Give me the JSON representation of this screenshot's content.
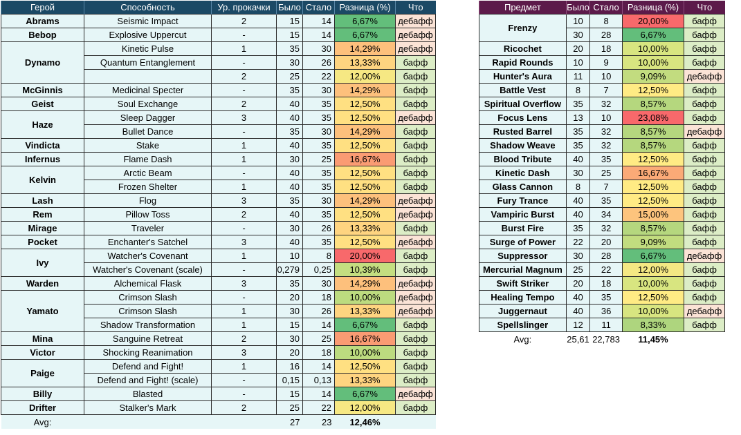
{
  "hero_table": {
    "headers": [
      "Герой",
      "Способность",
      "Ур. прокачки",
      "Было",
      "Стало",
      "Разница (%)",
      "Что"
    ],
    "rows": [
      {
        "hero": "Abrams",
        "span": 1,
        "ability": "Seismic Impact",
        "level": "2",
        "was": "15",
        "now": "14",
        "diff": "6,67%",
        "what": "дебафф",
        "type": "debuff",
        "color": "#63be7b"
      },
      {
        "hero": "Bebop",
        "span": 1,
        "ability": "Explosive Uppercut",
        "level": "-",
        "was": "15",
        "now": "14",
        "diff": "6,67%",
        "what": "дебафф",
        "type": "debuff",
        "color": "#63be7b"
      },
      {
        "hero": "Dynamo",
        "span": 3,
        "ability": "Kinetic Pulse",
        "level": "1",
        "was": "35",
        "now": "30",
        "diff": "14,29%",
        "what": "дебафф",
        "type": "debuff",
        "color": "#fdc07c"
      },
      {
        "hero": "",
        "span": 0,
        "ability": "Quantum Entanglement",
        "level": "-",
        "was": "30",
        "now": "26",
        "diff": "13,33%",
        "what": "бафф",
        "type": "buff",
        "color": "#fed480"
      },
      {
        "hero": "",
        "span": 0,
        "ability": "",
        "level": "2",
        "was": "25",
        "now": "22",
        "diff": "12,00%",
        "what": "бафф",
        "type": "buff",
        "color": "#f6e883"
      },
      {
        "hero": "McGinnis",
        "span": 1,
        "ability": "Medicinal Specter",
        "level": "-",
        "was": "35",
        "now": "30",
        "diff": "14,29%",
        "what": "бафф",
        "type": "buff",
        "color": "#fdc07c"
      },
      {
        "hero": "Geist",
        "span": 1,
        "ability": "Soul Exchange",
        "level": "2",
        "was": "40",
        "now": "35",
        "diff": "12,50%",
        "what": "бафф",
        "type": "buff",
        "color": "#ffe082"
      },
      {
        "hero": "Haze",
        "span": 2,
        "ability": "Sleep Dagger",
        "level": "3",
        "was": "40",
        "now": "35",
        "diff": "12,50%",
        "what": "дебафф",
        "type": "debuff",
        "color": "#ffe082"
      },
      {
        "hero": "",
        "span": 0,
        "ability": "Bullet Dance",
        "level": "-",
        "was": "35",
        "now": "30",
        "diff": "14,29%",
        "what": "бафф",
        "type": "buff",
        "color": "#fdc07c"
      },
      {
        "hero": "Vindicta",
        "span": 1,
        "ability": "Stake",
        "level": "1",
        "was": "40",
        "now": "35",
        "diff": "12,50%",
        "what": "бафф",
        "type": "buff",
        "color": "#ffe082"
      },
      {
        "hero": "Infernus",
        "span": 1,
        "ability": "Flame Dash",
        "level": "1",
        "was": "30",
        "now": "25",
        "diff": "16,67%",
        "what": "бафф",
        "type": "buff",
        "color": "#fa9b73"
      },
      {
        "hero": "Kelvin",
        "span": 2,
        "ability": "Arctic Beam",
        "level": "-",
        "was": "40",
        "now": "35",
        "diff": "12,50%",
        "what": "бафф",
        "type": "buff",
        "color": "#ffe082"
      },
      {
        "hero": "",
        "span": 0,
        "ability": "Frozen Shelter",
        "level": "1",
        "was": "40",
        "now": "35",
        "diff": "12,50%",
        "what": "бафф",
        "type": "buff",
        "color": "#ffe082"
      },
      {
        "hero": "Lash",
        "span": 1,
        "ability": "Flog",
        "level": "3",
        "was": "35",
        "now": "30",
        "diff": "14,29%",
        "what": "дебафф",
        "type": "debuff",
        "color": "#fdc07c"
      },
      {
        "hero": "Rem",
        "span": 1,
        "ability": "Pillow Toss",
        "level": "2",
        "was": "40",
        "now": "35",
        "diff": "12,50%",
        "what": "дебафф",
        "type": "debuff",
        "color": "#ffe082"
      },
      {
        "hero": "Mirage",
        "span": 1,
        "ability": "Traveler",
        "level": "-",
        "was": "30",
        "now": "26",
        "diff": "13,33%",
        "what": "бафф",
        "type": "buff",
        "color": "#fed480"
      },
      {
        "hero": "Pocket",
        "span": 1,
        "ability": "Enchanter's Satchel",
        "level": "3",
        "was": "40",
        "now": "35",
        "diff": "12,50%",
        "what": "дебафф",
        "type": "debuff",
        "color": "#ffe082"
      },
      {
        "hero": "Ivy",
        "span": 2,
        "ability": "Watcher's Covenant",
        "level": "1",
        "was": "10",
        "now": "8",
        "diff": "20,00%",
        "what": "бафф",
        "type": "buff",
        "color": "#f8696b"
      },
      {
        "hero": "",
        "span": 0,
        "ability": "Watcher's Covenant  (scale)",
        "level": "-",
        "was": "0,279",
        "now": "0,25",
        "diff": "10,39%",
        "what": "бафф",
        "type": "buff",
        "color": "#c4de80"
      },
      {
        "hero": "Warden",
        "span": 1,
        "ability": "Alchemical Flask",
        "level": "3",
        "was": "35",
        "now": "30",
        "diff": "14,29%",
        "what": "дебафф",
        "type": "debuff",
        "color": "#fdc07c"
      },
      {
        "hero": "Yamato",
        "span": 3,
        "ability": "Crimson Slash",
        "level": "-",
        "was": "20",
        "now": "18",
        "diff": "10,00%",
        "what": "дебафф",
        "type": "debuff",
        "color": "#bcdb7f"
      },
      {
        "hero": "",
        "span": 0,
        "ability": "Crimson Slash",
        "level": "1",
        "was": "30",
        "now": "26",
        "diff": "13,33%",
        "what": "дебафф",
        "type": "debuff",
        "color": "#fed480"
      },
      {
        "hero": "",
        "span": 0,
        "ability": "Shadow Transformation",
        "level": "1",
        "was": "15",
        "now": "14",
        "diff": "6,67%",
        "what": "бафф",
        "type": "buff",
        "color": "#63be7b"
      },
      {
        "hero": "Mina",
        "span": 1,
        "ability": "Sanguine Retreat",
        "level": "2",
        "was": "30",
        "now": "25",
        "diff": "16,67%",
        "what": "бафф",
        "type": "buff",
        "color": "#fa9b73"
      },
      {
        "hero": "Victor",
        "span": 1,
        "ability": "Shocking Reanimation",
        "level": "3",
        "was": "20",
        "now": "18",
        "diff": "10,00%",
        "what": "бафф",
        "type": "buff",
        "color": "#bcdb7f"
      },
      {
        "hero": "Paige",
        "span": 2,
        "ability": "Defend and Fight!",
        "level": "1",
        "was": "16",
        "now": "14",
        "diff": "12,50%",
        "what": "бафф",
        "type": "buff",
        "color": "#ffe082"
      },
      {
        "hero": "",
        "span": 0,
        "ability": "Defend and Fight! (scale)",
        "level": "-",
        "was": "0,15",
        "now": "0,13",
        "diff": "13,33%",
        "what": "бафф",
        "type": "buff",
        "color": "#fed480"
      },
      {
        "hero": "Billy",
        "span": 1,
        "ability": "Blasted",
        "level": "-",
        "was": "15",
        "now": "14",
        "diff": "6,67%",
        "what": "дебафф",
        "type": "debuff",
        "color": "#63be7b"
      },
      {
        "hero": "Drifter",
        "span": 1,
        "ability": "Stalker's Mark",
        "level": "2",
        "was": "25",
        "now": "22",
        "diff": "12,00%",
        "what": "бафф",
        "type": "buff",
        "color": "#f6e883"
      }
    ],
    "avg": {
      "label": "Avg:",
      "was": "27",
      "now": "23",
      "diff": "12,46%"
    }
  },
  "item_table": {
    "headers": [
      "Предмет",
      "Было",
      "Стало",
      "Разница (%)",
      "Что"
    ],
    "rows": [
      {
        "item": "Frenzy",
        "span": 2,
        "was": "10",
        "now": "8",
        "diff": "20,00%",
        "what": "бафф",
        "type": "buff",
        "color": "#f8696b"
      },
      {
        "item": "",
        "span": 0,
        "was": "30",
        "now": "28",
        "diff": "6,67%",
        "what": "бафф",
        "type": "buff",
        "color": "#63be7b"
      },
      {
        "item": "Ricochet",
        "span": 1,
        "was": "20",
        "now": "18",
        "diff": "10,00%",
        "what": "бафф",
        "type": "buff",
        "color": "#d8e580"
      },
      {
        "item": "Rapid Rounds",
        "span": 1,
        "was": "10",
        "now": "9",
        "diff": "10,00%",
        "what": "бафф",
        "type": "buff",
        "color": "#d8e580"
      },
      {
        "item": "Hunter's Aura",
        "span": 1,
        "was": "11",
        "now": "10",
        "diff": "9,09%",
        "what": "дебафф",
        "type": "debuff",
        "color": "#c2dc7f"
      },
      {
        "item": "Battle Vest",
        "span": 1,
        "was": "8",
        "now": "7",
        "diff": "12,50%",
        "what": "бафф",
        "type": "buff",
        "color": "#ffeb84"
      },
      {
        "item": "Spiritual Overflow",
        "span": 1,
        "was": "35",
        "now": "32",
        "diff": "8,57%",
        "what": "бафф",
        "type": "buff",
        "color": "#b5d77e"
      },
      {
        "item": "Focus Lens",
        "span": 1,
        "was": "13",
        "now": "10",
        "diff": "23,08%",
        "what": "бафф",
        "type": "buff",
        "color": "#f8696b"
      },
      {
        "item": "Rusted Barrel",
        "span": 1,
        "was": "35",
        "now": "32",
        "diff": "8,57%",
        "what": "дебафф",
        "type": "debuff",
        "color": "#b5d77e"
      },
      {
        "item": "Shadow Weave",
        "span": 1,
        "was": "35",
        "now": "32",
        "diff": "8,57%",
        "what": "бафф",
        "type": "buff",
        "color": "#b5d77e"
      },
      {
        "item": "Blood Tribute",
        "span": 1,
        "was": "40",
        "now": "35",
        "diff": "12,50%",
        "what": "бафф",
        "type": "buff",
        "color": "#ffeb84"
      },
      {
        "item": "Kinetic Dash",
        "span": 1,
        "was": "30",
        "now": "25",
        "diff": "16,67%",
        "what": "бафф",
        "type": "buff",
        "color": "#fbaa77"
      },
      {
        "item": "Glass Cannon",
        "span": 1,
        "was": "8",
        "now": "7",
        "diff": "12,50%",
        "what": "бафф",
        "type": "buff",
        "color": "#ffeb84"
      },
      {
        "item": "Fury Trance",
        "span": 1,
        "was": "40",
        "now": "35",
        "diff": "12,50%",
        "what": "бафф",
        "type": "buff",
        "color": "#ffeb84"
      },
      {
        "item": "Vampiric Burst",
        "span": 1,
        "was": "40",
        "now": "34",
        "diff": "15,00%",
        "what": "бафф",
        "type": "buff",
        "color": "#fdc47d"
      },
      {
        "item": "Burst Fire",
        "span": 1,
        "was": "35",
        "now": "32",
        "diff": "8,57%",
        "what": "бафф",
        "type": "buff",
        "color": "#b5d77e"
      },
      {
        "item": "Surge of Power",
        "span": 1,
        "was": "22",
        "now": "20",
        "diff": "9,09%",
        "what": "бафф",
        "type": "buff",
        "color": "#c2dc7f"
      },
      {
        "item": "Suppressor",
        "span": 1,
        "was": "30",
        "now": "28",
        "diff": "6,67%",
        "what": "дебафф",
        "type": "debuff",
        "color": "#63be7b"
      },
      {
        "item": "Mercurial Magnum",
        "span": 1,
        "was": "25",
        "now": "22",
        "diff": "12,00%",
        "what": "бафф",
        "type": "buff",
        "color": "#f4e883"
      },
      {
        "item": "Swift Striker",
        "span": 1,
        "was": "20",
        "now": "18",
        "diff": "10,00%",
        "what": "бафф",
        "type": "buff",
        "color": "#d8e580"
      },
      {
        "item": "Healing Tempo",
        "span": 1,
        "was": "40",
        "now": "35",
        "diff": "12,50%",
        "what": "бафф",
        "type": "buff",
        "color": "#ffeb84"
      },
      {
        "item": "Juggernaut",
        "span": 1,
        "was": "40",
        "now": "36",
        "diff": "10,00%",
        "what": "дебафф",
        "type": "debuff",
        "color": "#d8e580"
      },
      {
        "item": "Spellslinger",
        "span": 1,
        "was": "12",
        "now": "11",
        "diff": "8,33%",
        "what": "бафф",
        "type": "buff",
        "color": "#aed57e"
      }
    ],
    "avg": {
      "label": "Avg:",
      "was": "25,61",
      "now": "22,783",
      "diff": "11,45%"
    }
  }
}
